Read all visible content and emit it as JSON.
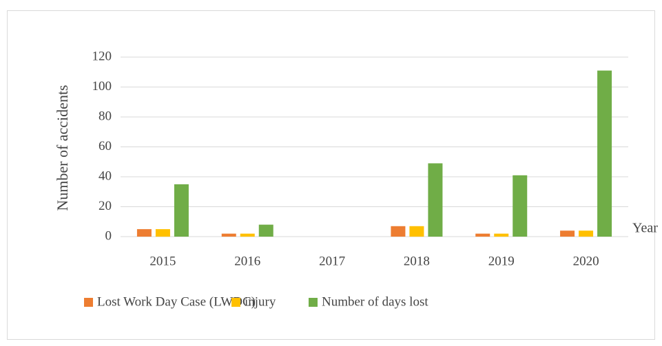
{
  "chart_data": {
    "type": "bar",
    "y_label": "Number of accidents",
    "x_label": "Year",
    "categories": [
      "2015",
      "2016",
      "2017",
      "2018",
      "2019",
      "2020"
    ],
    "series": [
      {
        "name": "Lost Work Day Case (LWDC)",
        "color": "#ed7d31",
        "values": [
          5,
          2,
          0,
          7,
          2,
          4
        ]
      },
      {
        "name": "injury",
        "color": "#ffc000",
        "values": [
          5,
          2,
          0,
          7,
          2,
          4
        ]
      },
      {
        "name": "Number of days lost",
        "color": "#70ad47",
        "values": [
          35,
          8,
          0,
          49,
          41,
          111
        ]
      }
    ],
    "ylim": [
      0,
      120
    ],
    "yticks": [
      0,
      20,
      40,
      60,
      80,
      100,
      120
    ],
    "grid": true,
    "legend": "bottom"
  }
}
